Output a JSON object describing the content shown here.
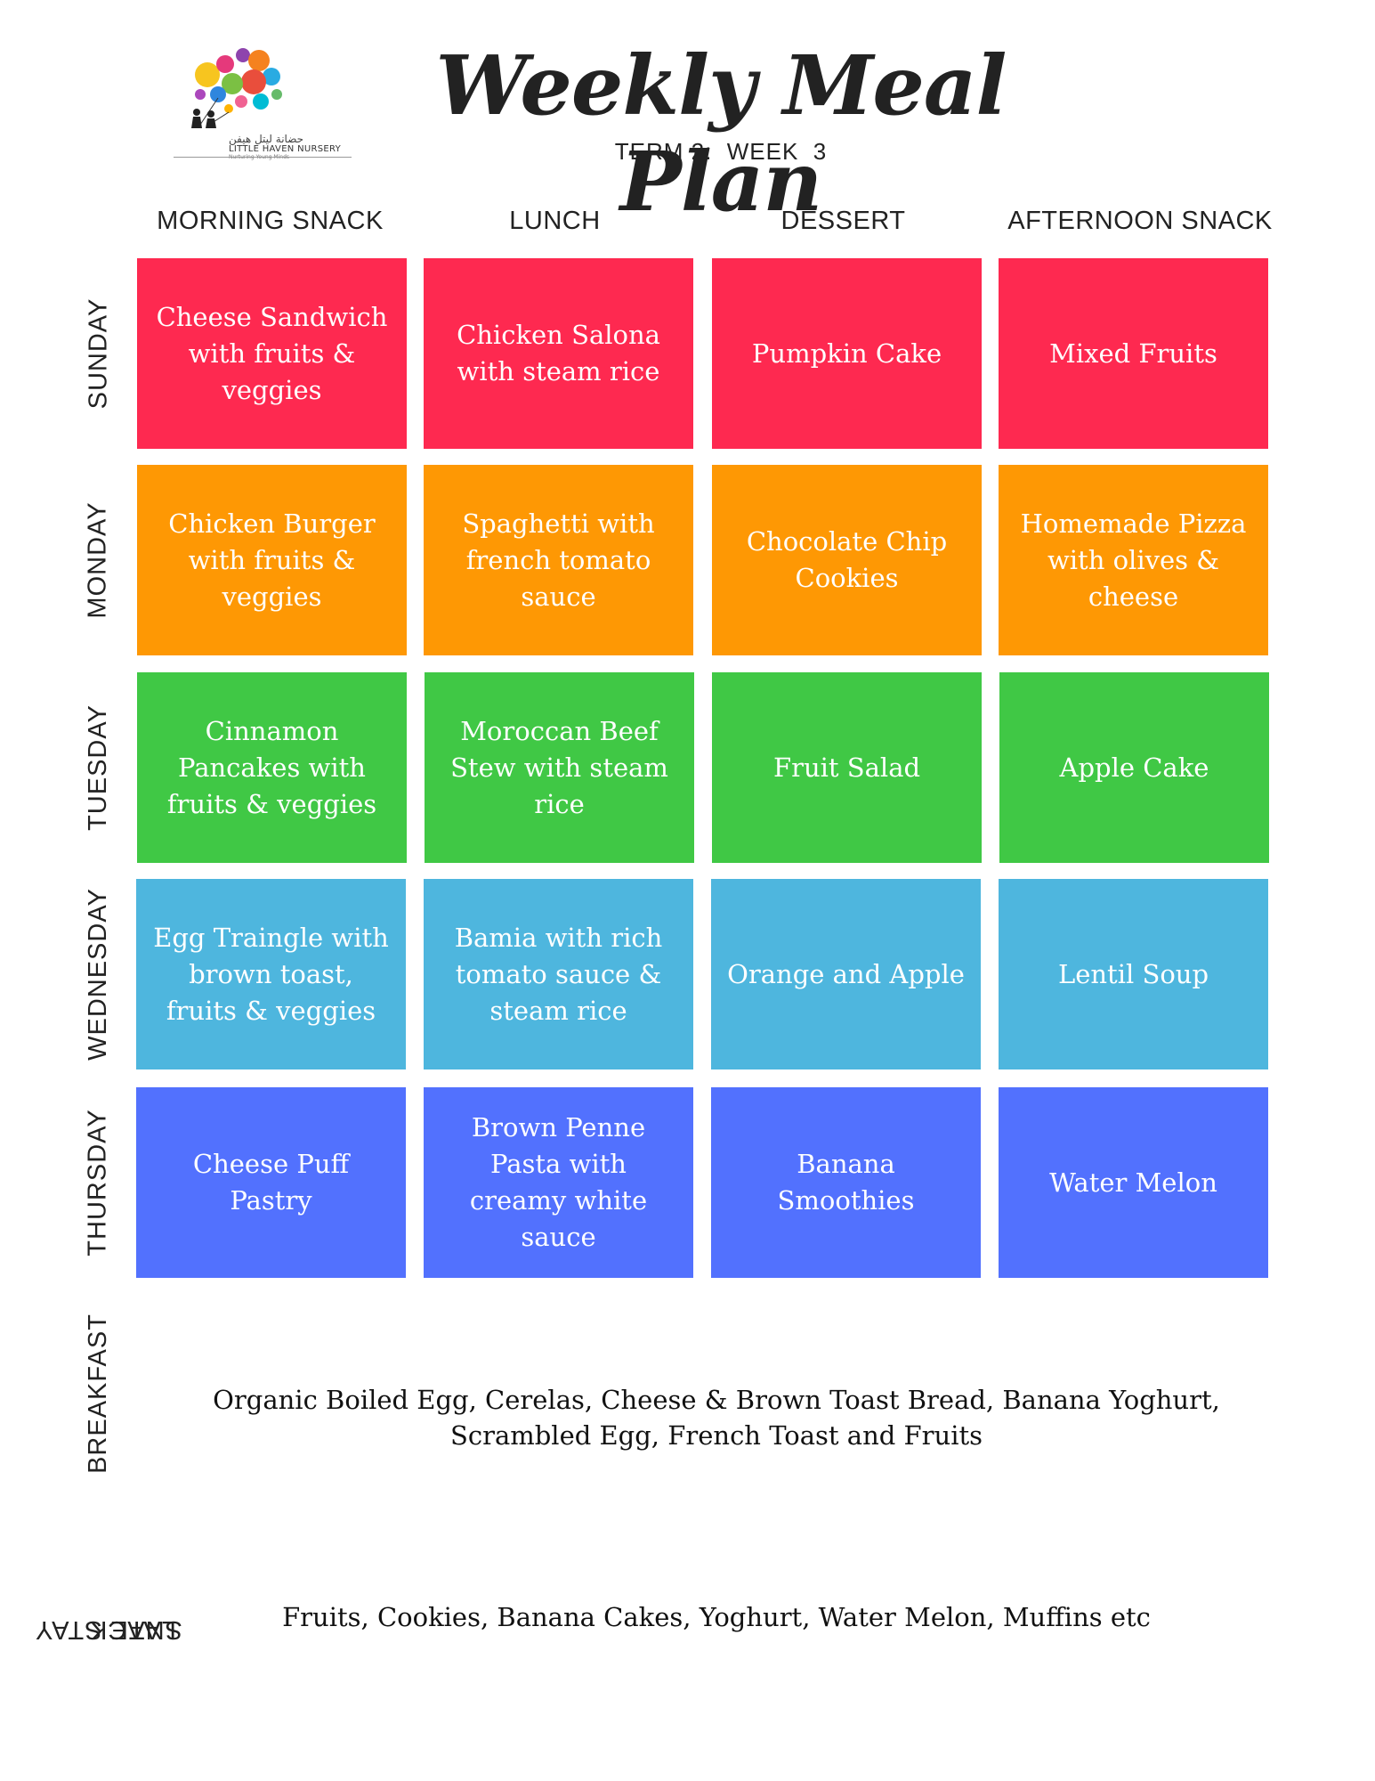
{
  "header": {
    "title": "Weekly Meal Plan",
    "subtitle": "TERM 2:  WEEK  3"
  },
  "logo": {
    "name_ar": "حضانة ليتل هيفن",
    "name_en": "LITTLE HAVEN NURSERY",
    "tagline": "Nurturing Young Minds"
  },
  "columns": [
    "MORNING SNACK",
    "LUNCH",
    "DESSERT",
    "AFTERNOON SNACK"
  ],
  "colors": {
    "sunday": "#fe2950",
    "monday": "#fe9804",
    "tuesday": "#40c845",
    "wednesday": "#4eb6de",
    "thursday": "#5271fe"
  },
  "days": [
    {
      "label": "SUNDAY",
      "meals": [
        "Cheese Sandwich with fruits & veggies",
        "Chicken Salona with steam rice",
        "Pumpkin Cake",
        "Mixed Fruits"
      ]
    },
    {
      "label": "MONDAY",
      "meals": [
        "Chicken Burger with fruits & veggies",
        "Spaghetti with french tomato sauce",
        "Chocolate Chip Cookies",
        "Homemade Pizza with olives & cheese"
      ]
    },
    {
      "label": "TUESDAY",
      "meals": [
        "Cinnamon Pancakes with fruits & veggies",
        "Moroccan Beef Stew with steam rice",
        "Fruit Salad",
        "Apple Cake"
      ]
    },
    {
      "label": "WEDNESDAY",
      "meals": [
        "Egg Traingle with brown toast, fruits & veggies",
        "Bamia with rich tomato sauce & steam rice",
        "Orange and Apple",
        "Lentil Soup"
      ]
    },
    {
      "label": "THURSDAY",
      "meals": [
        "Cheese Puff Pastry",
        "Brown  Penne Pasta with creamy white sauce",
        "Banana Smoothies",
        "Water Melon"
      ]
    }
  ],
  "breakfast": {
    "label": "BREAKFAST",
    "text": "Organic Boiled Egg, Cerelas, Cheese & Brown Toast Bread, Banana Yoghurt, Scrambled Egg, French Toast and Fruits"
  },
  "late_stay": {
    "label_line1": "LATE STAY",
    "label_line2": "SNACK",
    "text": "Fruits, Cookies, Banana Cakes, Yoghurt, Water Melon, Muffins etc"
  }
}
